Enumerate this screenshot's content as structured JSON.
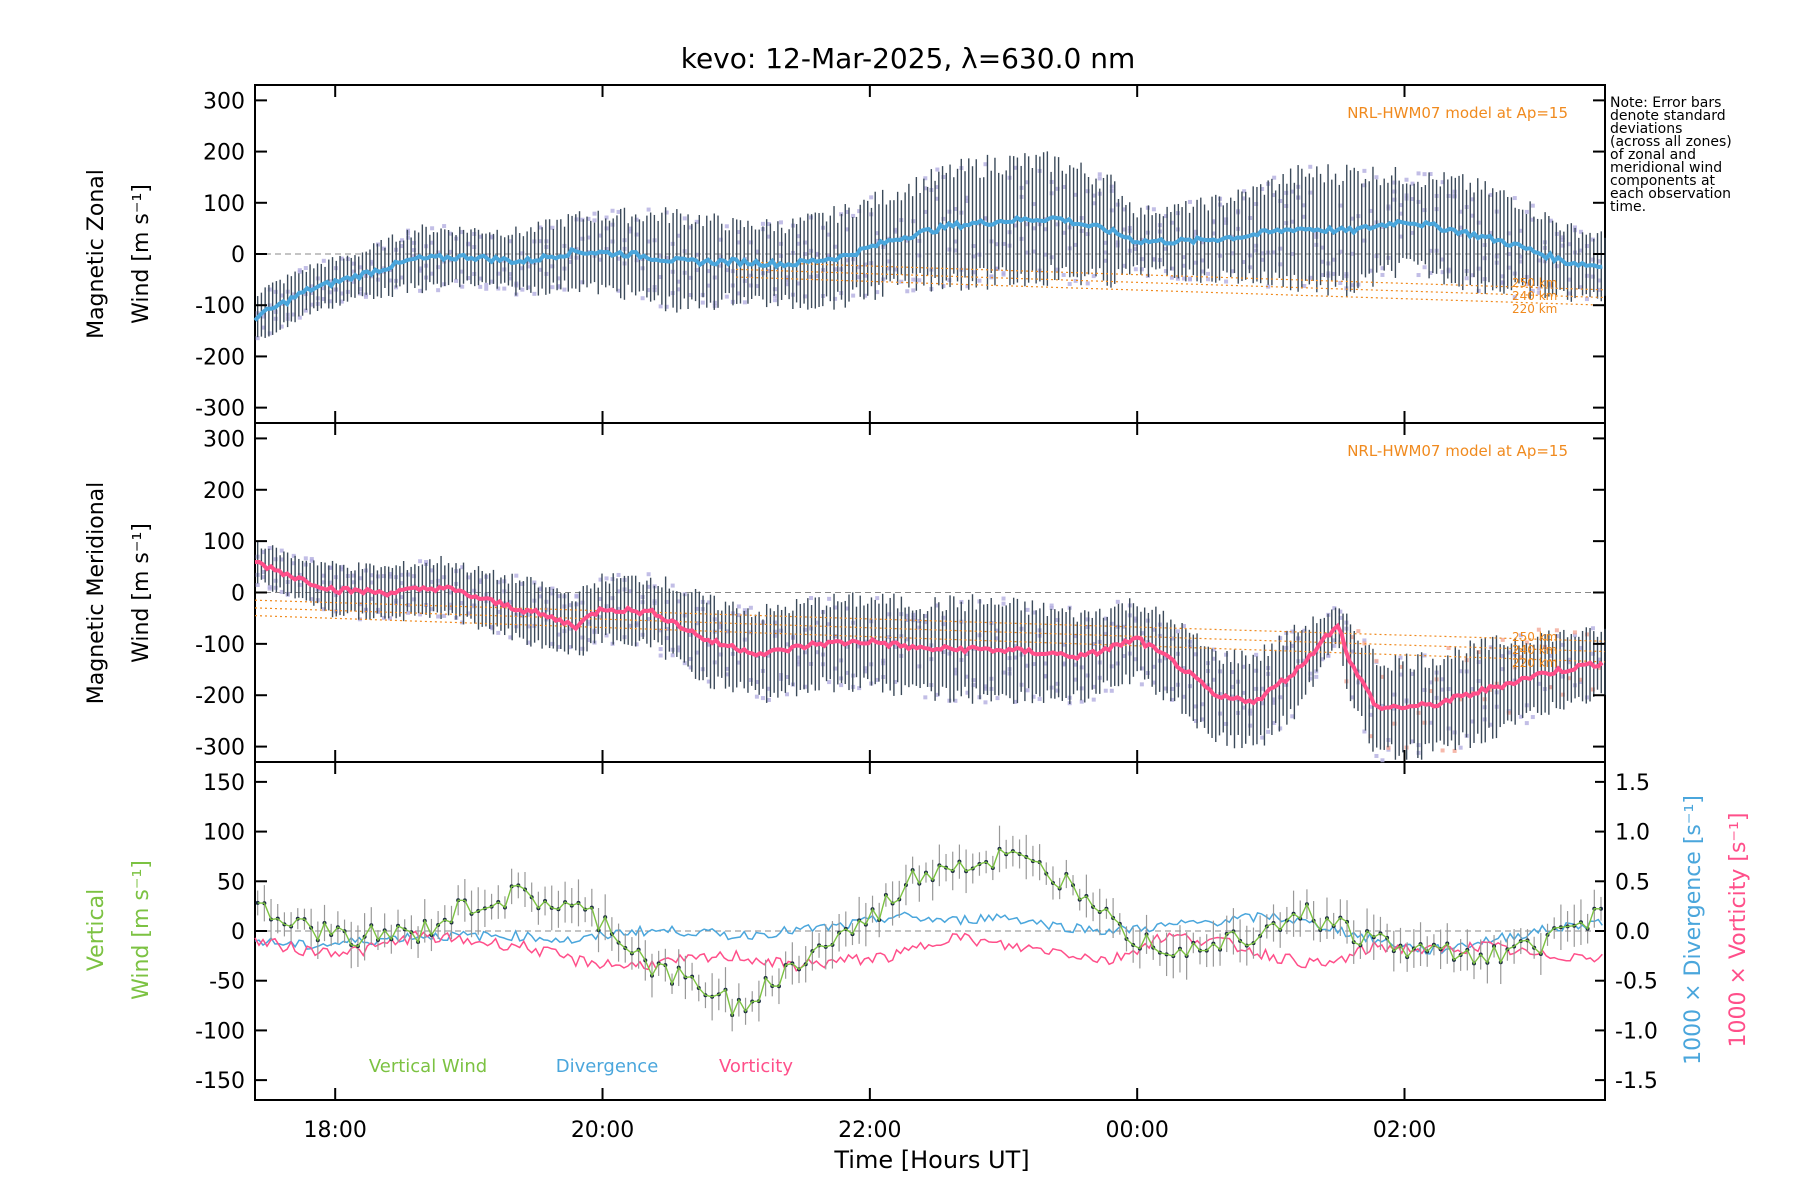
{
  "chart_data": {
    "type": "line",
    "title": "kevo: 12-Mar-2025, λ=630.0 nm",
    "xlabel": "Time [Hours UT]",
    "x_range_hours": [
      17.4,
      27.5
    ],
    "x_ticks": [
      {
        "value": 18,
        "label": "18:00"
      },
      {
        "value": 20,
        "label": "20:00"
      },
      {
        "value": 22,
        "label": "22:00"
      },
      {
        "value": 24,
        "label": "00:00"
      },
      {
        "value": 26,
        "label": "02:00"
      }
    ],
    "note_lines": [
      "Note: Error bars",
      "denote standard",
      "deviations",
      "(across all zones)",
      "of zonal and",
      "meridional wind",
      "components at",
      "each observation",
      "time."
    ],
    "colors": {
      "zonal": "#4aa6dc",
      "meridional": "#ff4f8a",
      "vertical": "#7cc242",
      "divergence": "#4aa6dc",
      "vorticity": "#ff4f8a",
      "model": "#f08a1e",
      "zone_scatter": "#b3aee0",
      "error_bar": "#3b4a5a",
      "salmon": "#f4a896"
    },
    "panels": [
      {
        "id": "zonal",
        "ylabel_line1": "Magnetic Zonal",
        "ylabel_line2": "Wind [m s⁻¹]",
        "ylim": [
          -330,
          330
        ],
        "yticks": [
          -300,
          -200,
          -100,
          0,
          100,
          200,
          300
        ],
        "model_label": "NRL-HWM07 model at Ap=15",
        "model_alt_labels": [
          "250 km",
          "240 km",
          "220 km"
        ],
        "series": [
          {
            "name": "Zonal wind",
            "x": [
              17.4,
              17.8,
              18.2,
              18.6,
              19.0,
              19.4,
              19.8,
              20.2,
              20.6,
              21.0,
              21.4,
              21.8,
              22.2,
              22.6,
              23.0,
              23.4,
              23.8,
              24.0,
              24.4,
              24.8,
              25.2,
              25.6,
              26.0,
              26.4,
              26.8,
              27.2,
              27.5
            ],
            "y": [
              -125,
              -70,
              -40,
              -10,
              -5,
              -15,
              5,
              0,
              -15,
              -15,
              -20,
              -5,
              30,
              55,
              65,
              70,
              45,
              25,
              25,
              35,
              50,
              45,
              65,
              45,
              20,
              -15,
              -25
            ],
            "err": [
              50,
              45,
              45,
              60,
              55,
              60,
              70,
              80,
              95,
              75,
              80,
              90,
              95,
              110,
              120,
              115,
              100,
              60,
              70,
              85,
              110,
              120,
              90,
              100,
              95,
              70,
              60
            ]
          }
        ],
        "model_lines": [
          {
            "alt": "250 km",
            "x": [
              21.0,
              27.5
            ],
            "y": [
              -15,
              -70
            ]
          },
          {
            "alt": "240 km",
            "x": [
              21.0,
              27.5
            ],
            "y": [
              -30,
              -85
            ]
          },
          {
            "alt": "220 km",
            "x": [
              21.0,
              27.5
            ],
            "y": [
              -45,
              -100
            ]
          }
        ]
      },
      {
        "id": "meridional",
        "ylabel_line1": "Magnetic Meridional",
        "ylabel_line2": "Wind [m s⁻¹]",
        "ylim": [
          -330,
          330
        ],
        "yticks": [
          -300,
          -200,
          -100,
          0,
          100,
          200,
          300
        ],
        "model_label": "NRL-HWM07 model at Ap=15",
        "model_alt_labels": [
          "250 km",
          "240 km",
          "220 km"
        ],
        "series": [
          {
            "name": "Meridional wind",
            "x": [
              17.4,
              17.7,
              18.0,
              18.4,
              18.8,
              19.2,
              19.5,
              19.8,
              20.0,
              20.4,
              20.8,
              21.2,
              21.6,
              22.0,
              22.4,
              22.8,
              23.2,
              23.6,
              24.0,
              24.3,
              24.6,
              24.9,
              25.2,
              25.5,
              25.6,
              25.8,
              26.2,
              26.6,
              27.0,
              27.5
            ],
            "y": [
              60,
              30,
              5,
              0,
              10,
              -20,
              -40,
              -65,
              -30,
              -40,
              -95,
              -120,
              -100,
              -95,
              -110,
              -110,
              -115,
              -125,
              -90,
              -140,
              -205,
              -210,
              -150,
              -60,
              -140,
              -225,
              -220,
              -190,
              -160,
              -135
            ],
            "err": [
              40,
              40,
              50,
              50,
              55,
              55,
              60,
              60,
              60,
              70,
              80,
              85,
              85,
              85,
              90,
              95,
              90,
              85,
              75,
              80,
              85,
              90,
              80,
              30,
              80,
              95,
              95,
              90,
              80,
              60
            ]
          }
        ],
        "model_lines": [
          {
            "alt": "250 km",
            "x": [
              17.4,
              27.5
            ],
            "y": [
              -15,
              -95
            ]
          },
          {
            "alt": "240 km",
            "x": [
              17.4,
              27.5
            ],
            "y": [
              -30,
              -115
            ]
          },
          {
            "alt": "220 km",
            "x": [
              17.4,
              27.5
            ],
            "y": [
              -45,
              -135
            ]
          }
        ]
      },
      {
        "id": "vertical",
        "ylabel_line1": "Vertical",
        "ylabel_line2": "Wind [m s⁻¹]",
        "ylim": [
          -170,
          170
        ],
        "yticks": [
          -150,
          -100,
          -50,
          0,
          50,
          100,
          150
        ],
        "right_axis": {
          "ylim": [
            -1.7,
            1.7
          ],
          "yticks": [
            -1.5,
            -1.0,
            -0.5,
            0.0,
            0.5,
            1.0,
            1.5
          ],
          "label_divergence": "1000 × Divergence [s⁻¹]",
          "label_vorticity": "1000 × Vorticity [s⁻¹]"
        },
        "legend": [
          "Vertical Wind",
          "Divergence",
          "Vorticity"
        ],
        "series": [
          {
            "name": "Vertical Wind",
            "x": [
              17.4,
              17.8,
              18.2,
              18.6,
              19.0,
              19.4,
              19.8,
              20.0,
              20.4,
              20.8,
              21.0,
              21.3,
              21.6,
              22.0,
              22.3,
              22.6,
              22.8,
              23.0,
              23.3,
              23.6,
              23.8,
              24.0,
              24.4,
              24.8,
              25.2,
              25.6,
              26.0,
              26.4,
              26.8,
              27.2,
              27.5
            ],
            "y": [
              20,
              0,
              -5,
              -5,
              25,
              35,
              20,
              10,
              -40,
              -60,
              -75,
              -50,
              -20,
              10,
              50,
              70,
              65,
              75,
              60,
              40,
              25,
              -10,
              -15,
              -5,
              20,
              0,
              -20,
              -20,
              -25,
              0,
              25
            ]
          },
          {
            "name": "Divergence",
            "x": [
              17.4,
              17.8,
              18.2,
              18.6,
              19.0,
              19.4,
              19.8,
              20.2,
              20.6,
              21.0,
              21.4,
              21.8,
              22.2,
              22.6,
              23.0,
              23.4,
              23.8,
              24.2,
              24.6,
              25.0,
              25.4,
              25.8,
              26.2,
              26.6,
              27.0,
              27.5
            ],
            "y": [
              -0.1,
              -0.15,
              -0.1,
              -0.05,
              -0.05,
              -0.05,
              -0.1,
              0.0,
              0.0,
              -0.05,
              0.0,
              0.05,
              0.15,
              0.1,
              0.15,
              0.05,
              0.0,
              0.05,
              0.1,
              0.15,
              0.05,
              -0.1,
              -0.2,
              -0.1,
              0.0,
              0.1
            ]
          },
          {
            "name": "Vorticity",
            "x": [
              17.4,
              17.8,
              18.2,
              18.6,
              19.0,
              19.4,
              19.8,
              20.2,
              20.6,
              21.0,
              21.4,
              21.8,
              22.2,
              22.6,
              23.0,
              23.4,
              23.8,
              24.2,
              24.6,
              25.0,
              25.4,
              25.8,
              26.2,
              26.6,
              27.0,
              27.5
            ],
            "y": [
              -0.1,
              -0.2,
              -0.2,
              -0.05,
              -0.1,
              -0.15,
              -0.3,
              -0.35,
              -0.3,
              -0.25,
              -0.35,
              -0.3,
              -0.25,
              -0.05,
              -0.15,
              -0.2,
              -0.3,
              -0.05,
              -0.1,
              -0.25,
              -0.35,
              -0.15,
              -0.2,
              -0.15,
              -0.25,
              -0.25
            ]
          }
        ]
      }
    ]
  }
}
